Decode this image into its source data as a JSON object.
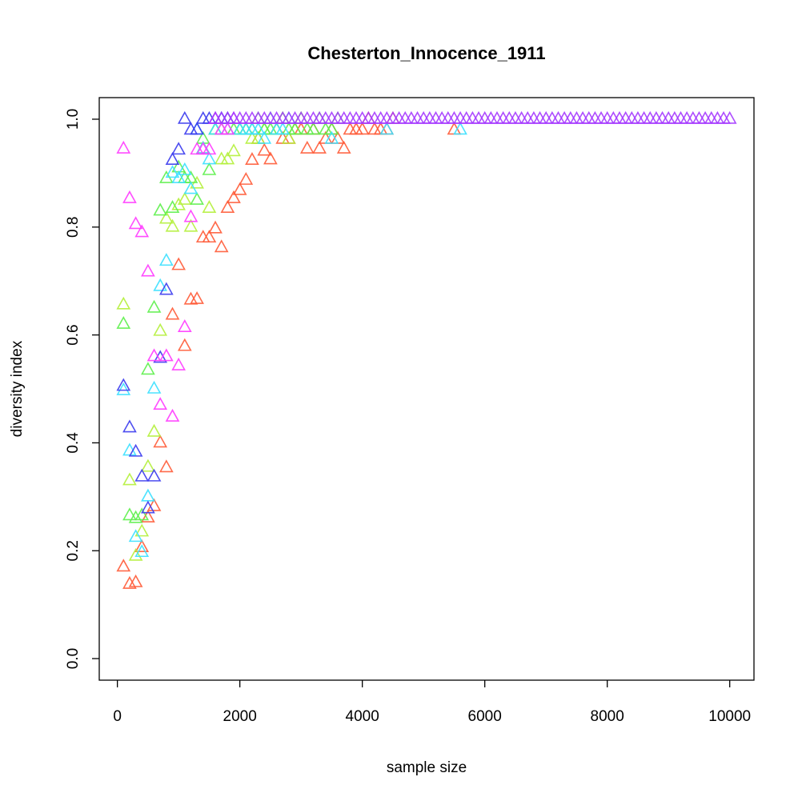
{
  "chart_data": {
    "type": "scatter",
    "title": "Chesterton_Innocence_1911",
    "x_label": "sample size",
    "y_label": "diversity index",
    "xlim": [
      -296,
      10396
    ],
    "ylim": [
      -0.04,
      1.04
    ],
    "xticks": [
      0,
      2000,
      4000,
      6000,
      8000,
      10000
    ],
    "yticks": [
      {
        "value": 0,
        "label": "0.0"
      },
      0.2,
      0.4,
      0.6,
      0.8,
      {
        "value": 1,
        "label": "1.0"
      }
    ],
    "grid": false,
    "series": [
      {
        "color": "#ff5a36",
        "x": [
          100,
          200,
          300,
          400,
          500,
          600,
          700,
          800,
          900,
          1000,
          1100,
          1200,
          1300,
          1400,
          1500,
          1600,
          1700,
          1800,
          1900,
          2000,
          2100,
          2200,
          2300,
          2400,
          2500,
          2600,
          2700,
          2800,
          2900,
          3000,
          3100,
          3200,
          3300,
          3400,
          3500,
          3600,
          3700,
          3800,
          3900,
          4000,
          4100,
          4200,
          4300,
          4400,
          4500,
          5500
        ],
        "values": [
          0.17,
          0.138,
          0.141,
          0.206,
          0.261,
          0.282,
          0.4,
          0.354,
          0.637,
          0.729,
          0.579,
          0.665,
          0.666,
          0.78,
          0.78,
          0.797,
          0.762,
          0.835,
          0.853,
          0.868,
          0.887,
          0.924,
          0.963,
          0.941,
          0.925,
          0.98,
          0.963,
          0.963,
          0.98,
          0.98,
          0.945,
          0.98,
          0.945,
          0.963,
          0.98,
          0.963,
          0.945,
          0.98,
          0.98,
          0.98,
          1.0,
          0.98,
          0.98,
          0.98,
          1.0,
          0.98
        ]
      },
      {
        "color": "#b4f03a",
        "x": [
          100,
          200,
          300,
          400,
          500,
          600,
          700,
          800,
          900,
          1000,
          1100,
          1200,
          1300,
          1400,
          1500,
          1600,
          1700,
          1800,
          1900,
          2000,
          2100,
          2200,
          2300,
          2400,
          2500,
          2600,
          2700,
          2800,
          2900,
          3000
        ],
        "values": [
          0.656,
          0.33,
          0.19,
          0.235,
          0.355,
          0.42,
          0.607,
          0.815,
          0.8,
          0.84,
          0.85,
          0.8,
          0.88,
          0.945,
          0.835,
          0.98,
          0.925,
          0.925,
          0.94,
          0.98,
          0.98,
          0.963,
          0.963,
          0.98,
          1.0,
          0.98,
          1.0,
          0.963,
          0.98,
          1.0
        ]
      },
      {
        "color": "#5cf04a",
        "x": [
          100,
          200,
          300,
          400,
          500,
          600,
          700,
          800,
          900,
          1000,
          1100,
          1200,
          1300,
          1400,
          1500,
          1600,
          1700,
          1800,
          1900,
          2000,
          2100,
          2200,
          2300,
          2400,
          2500,
          2600,
          2700,
          2800,
          2900,
          3000,
          3100,
          3200,
          3300,
          3400,
          3500,
          3600
        ],
        "values": [
          0.62,
          0.265,
          0.26,
          0.265,
          0.535,
          0.65,
          0.83,
          0.89,
          0.835,
          0.91,
          0.89,
          0.89,
          0.85,
          0.963,
          0.905,
          0.98,
          0.98,
          1.0,
          0.98,
          0.98,
          0.98,
          0.98,
          1.0,
          0.98,
          0.98,
          0.98,
          1.0,
          0.98,
          0.98,
          1.0,
          0.98,
          0.98,
          1.0,
          0.98,
          0.98,
          1.0
        ]
      },
      {
        "color": "#3ae0ff",
        "x": [
          100,
          200,
          300,
          400,
          500,
          600,
          700,
          800,
          900,
          1000,
          1100,
          1200,
          1300,
          1400,
          1500,
          1600,
          1700,
          1800,
          1900,
          2000,
          2100,
          2200,
          2300,
          2400,
          2500,
          2600,
          2700,
          2800,
          3500,
          4400,
          5600
        ],
        "values": [
          0.497,
          0.385,
          0.225,
          0.197,
          0.3,
          0.5,
          0.69,
          0.737,
          0.9,
          0.89,
          0.905,
          0.87,
          0.98,
          0.945,
          0.925,
          0.98,
          1.0,
          0.98,
          1.0,
          0.98,
          0.98,
          0.98,
          0.98,
          0.963,
          1.0,
          0.98,
          0.98,
          1.0,
          0.963,
          0.98,
          0.98
        ]
      },
      {
        "color": "#3a3aee",
        "x": [
          100,
          200,
          300,
          400,
          500,
          600,
          700,
          800,
          900,
          1000,
          1100,
          1200,
          1300,
          1400,
          1500,
          1600,
          1700,
          1800
        ],
        "values": [
          0.505,
          0.428,
          0.383,
          0.337,
          0.278,
          0.337,
          0.557,
          0.683,
          0.924,
          0.943,
          1.0,
          0.98,
          0.98,
          1.0,
          1.0,
          1.0,
          1.0,
          1.0
        ]
      },
      {
        "color": "#ff3aff",
        "x": [
          100,
          200,
          300,
          400,
          500,
          600,
          700,
          800,
          900,
          1000,
          1100,
          1200,
          1300,
          1400,
          1500,
          1600,
          1700,
          1800,
          1900
        ],
        "values": [
          0.945,
          0.853,
          0.805,
          0.79,
          0.717,
          0.56,
          0.47,
          0.56,
          0.448,
          0.543,
          0.614,
          0.818,
          0.943,
          0.943,
          0.943,
          1.0,
          0.98,
          0.98,
          1.0
        ]
      },
      {
        "color": "#a53aff",
        "x": [
          1600,
          1700,
          1800,
          1900,
          2000,
          2100,
          2200,
          2300,
          2400,
          2500,
          2600,
          2700,
          2800,
          2900,
          3000,
          3100,
          3200,
          3300,
          3400,
          3500,
          3600,
          3700,
          3800,
          3900,
          4000,
          4100,
          4200,
          4300,
          4400,
          4500,
          4600,
          4700,
          4800,
          4900,
          5000,
          5100,
          5200,
          5300,
          5400,
          5500,
          5600,
          5700,
          5800,
          5900,
          6000,
          6100,
          6200,
          6300,
          6400,
          6500,
          6600,
          6700,
          6800,
          6900,
          7000,
          7100,
          7200,
          7300,
          7400,
          7500,
          7600,
          7700,
          7800,
          7900,
          8000,
          8100,
          8200,
          8300,
          8400,
          8500,
          8600,
          8700,
          8800,
          8900,
          9000,
          9100,
          9200,
          9300,
          9400,
          9500,
          9600,
          9700,
          9800,
          9900,
          10000
        ],
        "values": [
          1,
          1,
          1,
          1,
          1,
          1,
          1,
          1,
          1,
          1,
          1,
          1,
          1,
          1,
          1,
          1,
          1,
          1,
          1,
          1,
          1,
          1,
          1,
          1,
          1,
          1,
          1,
          1,
          1,
          1,
          1,
          1,
          1,
          1,
          1,
          1,
          1,
          1,
          1,
          1,
          1,
          1,
          1,
          1,
          1,
          1,
          1,
          1,
          1,
          1,
          1,
          1,
          1,
          1,
          1,
          1,
          1,
          1,
          1,
          1,
          1,
          1,
          1,
          1,
          1,
          1,
          1,
          1,
          1,
          1,
          1,
          1,
          1,
          1,
          1,
          1,
          1,
          1,
          1,
          1,
          1,
          1,
          1,
          1,
          1
        ]
      }
    ]
  }
}
